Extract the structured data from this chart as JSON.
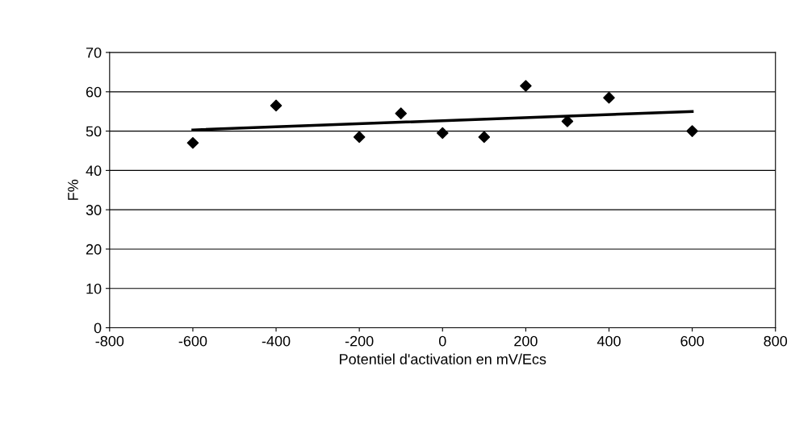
{
  "chart_data": {
    "type": "scatter",
    "xlabel": "Potentiel d'activation en mV/Ecs",
    "ylabel": "F%",
    "xlim": [
      -800,
      800
    ],
    "xticks": [
      -800,
      -600,
      -400,
      -200,
      0,
      200,
      400,
      600,
      800
    ],
    "ylim": [
      0,
      70
    ],
    "yticks": [
      0,
      10,
      20,
      30,
      40,
      50,
      60,
      70
    ],
    "grid": "y",
    "series": [
      {
        "marker": "diamond",
        "color": "#000000",
        "x": [
          -600,
          -400,
          -200,
          -100,
          0,
          100,
          200,
          300,
          400,
          600
        ],
        "values": [
          47,
          56.5,
          48.5,
          54.5,
          49.5,
          48.5,
          61.5,
          52.5,
          58.5,
          50
        ]
      },
      {
        "type": "line",
        "color": "#000000",
        "x": [
          -600,
          600
        ],
        "values": [
          50.3,
          55
        ]
      }
    ]
  }
}
